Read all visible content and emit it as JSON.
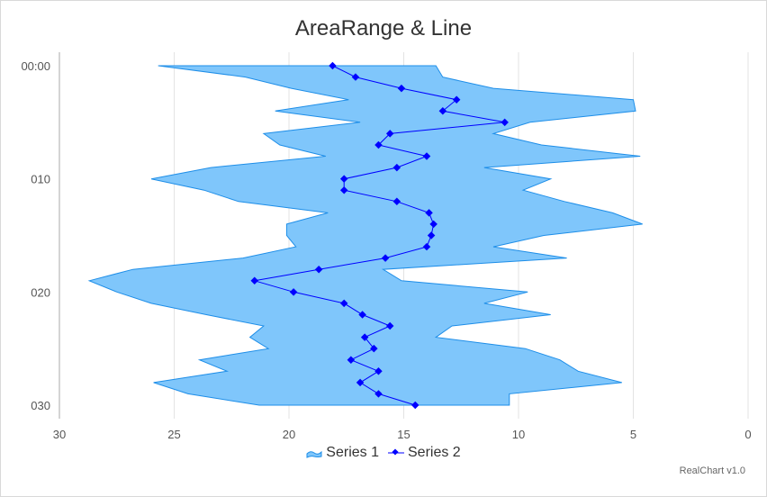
{
  "chart_data": {
    "type": "area-range-line",
    "title": "AreaRange & Line",
    "orientation": "inverted",
    "x_axis": {
      "labels": [
        "00:00",
        "010",
        "020",
        "030"
      ],
      "label_positions": [
        0,
        10,
        20,
        30
      ],
      "range": [
        0,
        30
      ]
    },
    "y_axis": {
      "ticks": [
        30,
        25,
        20,
        15,
        10,
        5,
        0
      ],
      "range": [
        0,
        30
      ],
      "reversed": true
    },
    "grid": true,
    "legend_position": "bottom",
    "series": [
      {
        "name": "Series 1",
        "type": "arearange",
        "color": "#7fc6fb",
        "stroke": "#1e8ee8",
        "data": [
          [
            25.7,
            13.6
          ],
          [
            21.9,
            13.3
          ],
          [
            19.9,
            11.1
          ],
          [
            17.4,
            5.0
          ],
          [
            20.6,
            4.9
          ],
          [
            16.9,
            9.5
          ],
          [
            21.1,
            11.1
          ],
          [
            20.4,
            9.0
          ],
          [
            18.4,
            4.7
          ],
          [
            23.4,
            11.5
          ],
          [
            26.0,
            8.6
          ],
          [
            23.7,
            9.8
          ],
          [
            22.2,
            8.0
          ],
          [
            18.3,
            5.9
          ],
          [
            20.1,
            4.6
          ],
          [
            20.1,
            8.9
          ],
          [
            19.7,
            11.1
          ],
          [
            22.0,
            7.9
          ],
          [
            26.8,
            15.9
          ],
          [
            28.7,
            15.1
          ],
          [
            27.5,
            9.6
          ],
          [
            26.0,
            11.5
          ],
          [
            23.6,
            8.6
          ],
          [
            21.1,
            12.9
          ],
          [
            21.7,
            13.6
          ],
          [
            20.9,
            9.7
          ],
          [
            23.9,
            8.2
          ],
          [
            22.7,
            7.4
          ],
          [
            25.9,
            5.5
          ],
          [
            24.4,
            10.4
          ],
          [
            21.3,
            10.4
          ]
        ]
      },
      {
        "name": "Series 2",
        "type": "line",
        "color": "#0000ff",
        "data": [
          18.1,
          17.1,
          15.1,
          12.7,
          13.3,
          10.6,
          15.6,
          16.1,
          14.0,
          15.3,
          17.6,
          17.6,
          15.3,
          13.9,
          13.7,
          13.8,
          14.0,
          15.8,
          18.7,
          21.5,
          19.8,
          17.6,
          16.8,
          15.6,
          16.7,
          16.3,
          17.3,
          16.1,
          16.9,
          16.1,
          14.5
        ]
      }
    ]
  },
  "credit": "RealChart v1.0"
}
